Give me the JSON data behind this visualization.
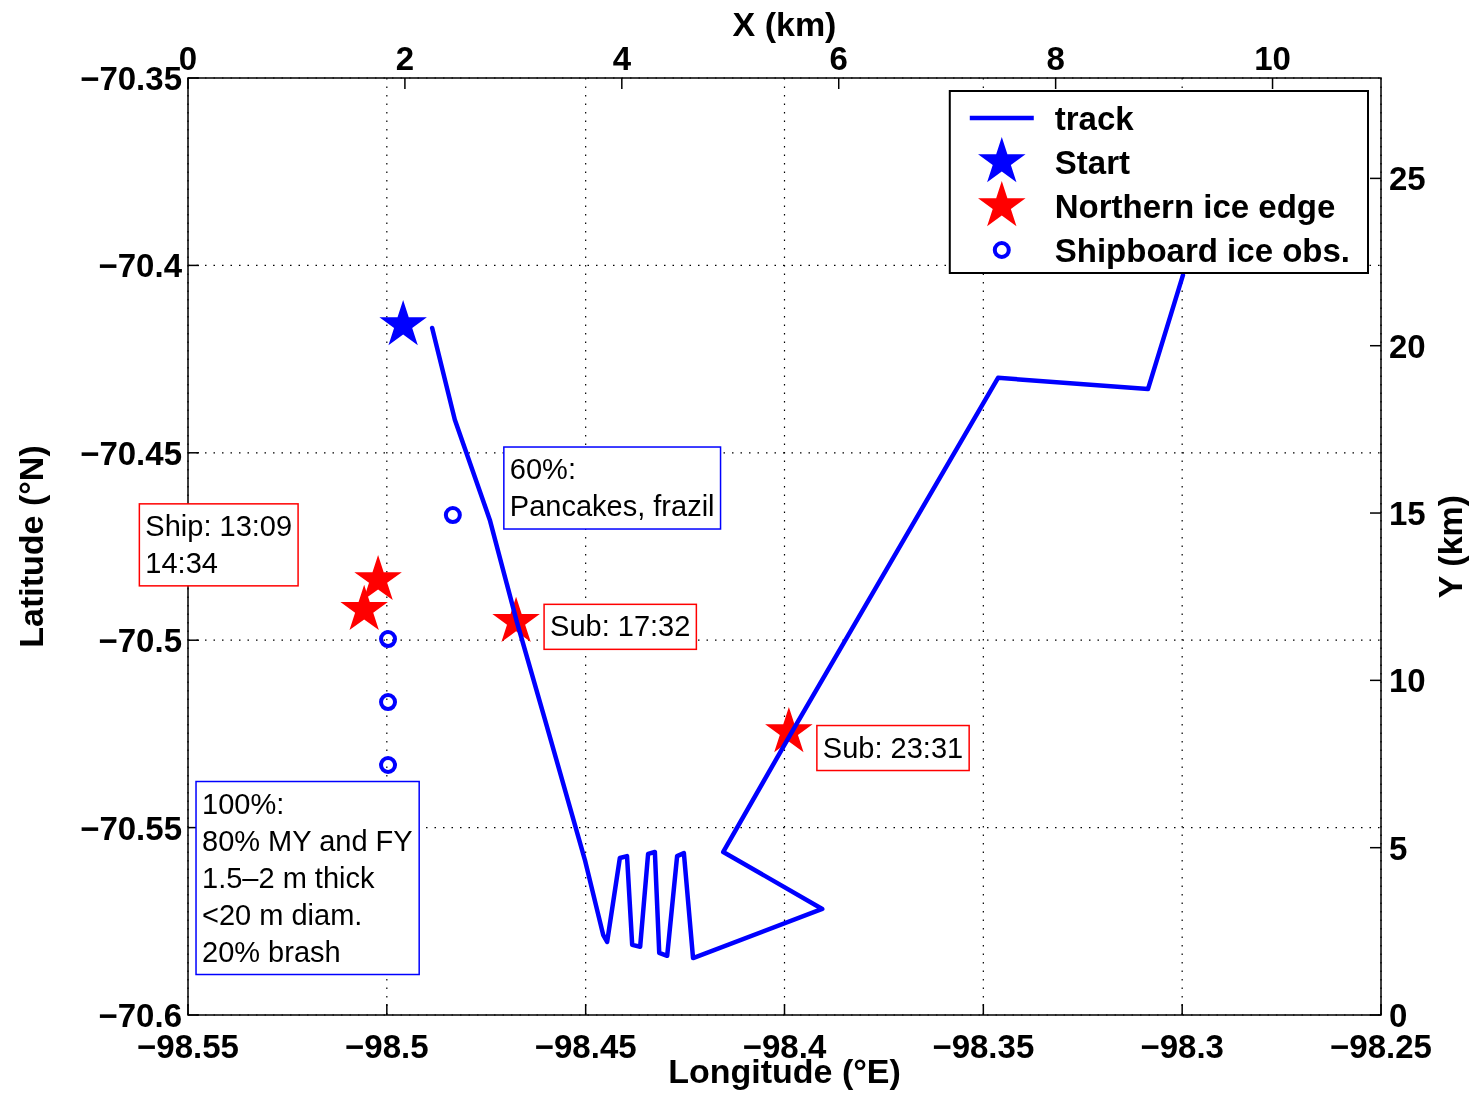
{
  "chart_data": {
    "type": "line",
    "xlabel": "Longitude (°E)",
    "ylabel": "Latitude (°N)",
    "x2label": "X (km)",
    "y2label": "Y (km)",
    "xlim": [
      -98.55,
      -98.25
    ],
    "xticks": [
      {
        "value": -98.55,
        "label": "−98.55"
      },
      {
        "value": -98.5,
        "label": "−98.5"
      },
      {
        "value": -98.45,
        "label": "−98.45"
      },
      {
        "value": -98.4,
        "label": "−98.4"
      },
      {
        "value": -98.35,
        "label": "−98.35"
      },
      {
        "value": -98.3,
        "label": "−98.3"
      },
      {
        "value": -98.25,
        "label": "−98.25"
      }
    ],
    "ylim": [
      -70.6,
      -70.35
    ],
    "yticks": [
      {
        "value": -70.6,
        "label": "−70.6"
      },
      {
        "value": -70.55,
        "label": "−70.55"
      },
      {
        "value": -70.5,
        "label": "−70.5"
      },
      {
        "value": -70.45,
        "label": "−70.45"
      },
      {
        "value": -70.4,
        "label": "−70.4"
      },
      {
        "value": -70.35,
        "label": "−70.35"
      }
    ],
    "x2lim": [
      0,
      11
    ],
    "x2ticks": [
      0,
      2,
      4,
      6,
      8,
      10
    ],
    "y2lim": [
      0,
      28
    ],
    "y2ticks": [
      0,
      5,
      10,
      15,
      20,
      25
    ],
    "grid": true,
    "legend": "top right",
    "series": [
      {
        "name": "track",
        "type": "line",
        "color": "#0000ff",
        "marker": "none",
        "line_style": "solid",
        "x": [
          -98.4886,
          -98.4829,
          -98.4741,
          -98.4673,
          -98.4602,
          -98.4502,
          -98.4456,
          -98.4446,
          -98.4414,
          -98.4396,
          -98.4383,
          -98.4363,
          -98.4343,
          -98.4326,
          -98.4315,
          -98.4295,
          -98.427,
          -98.4253,
          -98.423,
          -98.3905,
          -98.4154,
          -98.3986,
          -98.3463,
          -98.3086,
          -98.2998
        ],
        "values": [
          -70.4167,
          -70.4412,
          -70.4679,
          -70.4951,
          -70.5213,
          -70.5586,
          -70.5786,
          -70.5805,
          -70.5581,
          -70.5576,
          -70.5813,
          -70.5818,
          -70.557,
          -70.5565,
          -70.5834,
          -70.5842,
          -70.5576,
          -70.5568,
          -70.5848,
          -70.5717,
          -70.5565,
          -70.5253,
          -70.43,
          -70.433,
          -70.4026
        ]
      },
      {
        "name": "Start",
        "type": "scatter",
        "color": "#0000ff",
        "marker": "star",
        "x": [
          -98.4959
        ],
        "values": [
          -70.4159
        ]
      },
      {
        "name": "Northern ice edge",
        "type": "scatter",
        "color": "#ff0000",
        "marker": "star",
        "x": [
          -98.5022,
          -98.5057,
          -98.4675,
          -98.3989
        ],
        "values": [
          -70.4839,
          -70.4919,
          -70.4951,
          -70.5245
        ]
      },
      {
        "name": "Shipboard ice obs.",
        "type": "scatter",
        "color": "#0000ff",
        "marker": "circle",
        "x": [
          -98.4834,
          -98.4997,
          -98.4997,
          -98.4997
        ],
        "values": [
          -70.4666,
          -70.4997,
          -70.5165,
          -70.5333
        ]
      }
    ],
    "annotations": [
      {
        "text": "Ship: 13:09\n14:34",
        "x": -98.5022,
        "y": -70.4839
      },
      {
        "text": "60%:\nPancakes, frazil",
        "x": -98.4834,
        "y": -70.4666
      },
      {
        "text": "Sub: 17:32",
        "x": -98.4675,
        "y": -70.4951
      },
      {
        "text": "Sub: 23:31",
        "x": -98.3989,
        "y": -70.5245
      },
      {
        "text": "100%:\n80% MY and FY\n1.5–2 m thick\n<20 m diam.\n20% brash",
        "x": -98.4997,
        "y": -70.5333
      }
    ]
  }
}
